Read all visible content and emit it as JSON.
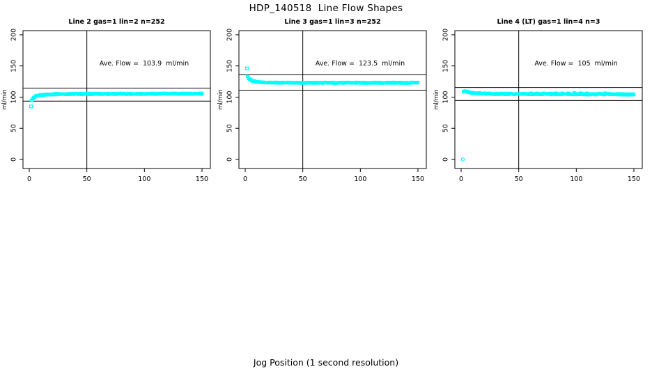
{
  "chart_data": {
    "type": "scatter",
    "title": "HDP_140518  Line Flow Shapes",
    "xlabel": "Jog Position (1 second resolution)",
    "ylabel": "ml/min",
    "xticks": [
      0,
      50,
      100,
      150
    ],
    "yticks": [
      0,
      50,
      100,
      150,
      200
    ],
    "xlim": [
      -5.5,
      157
    ],
    "ylim": [
      -14,
      208
    ],
    "grid": false,
    "marker": "open-square",
    "marker_color": "#00FFFF",
    "line_color": "#000000",
    "vline_x": 50,
    "panels": [
      {
        "title": "Line 2 gas=1 lin=2 n=252",
        "ave_label": "Ave. Flow =  103.9  ml/min",
        "ave_flow": 103.9,
        "n": 252,
        "ref_lines": [
          93.5,
          114.3
        ],
        "outlier": {
          "x": 1.5,
          "y": 85,
          "marker": "square"
        },
        "band": [
          [
            2,
            94.5
          ],
          [
            3,
            97
          ],
          [
            4,
            99
          ],
          [
            5,
            100.3
          ],
          [
            6,
            101.2
          ],
          [
            8,
            102.4
          ],
          [
            11,
            103.4
          ],
          [
            15,
            104.2
          ],
          [
            22,
            104.8
          ],
          [
            35,
            105
          ],
          [
            70,
            105.2
          ],
          [
            120,
            105.4
          ],
          [
            150,
            105.5
          ]
        ],
        "band_jitter": 0.9
      },
      {
        "title": "Line 3 gas=1 lin=3 n=252",
        "ave_label": "Ave. Flow =  123.5  ml/min",
        "ave_flow": 123.5,
        "n": 252,
        "ref_lines": [
          111.2,
          135.9
        ],
        "outlier": {
          "x": 1.5,
          "y": 146,
          "marker": "square"
        },
        "band": [
          [
            2,
            133
          ],
          [
            3,
            130.5
          ],
          [
            4,
            128.8
          ],
          [
            5,
            127.5
          ],
          [
            7,
            125.8
          ],
          [
            9,
            124.8
          ],
          [
            12,
            124
          ],
          [
            18,
            123.4
          ],
          [
            30,
            123.1
          ],
          [
            70,
            123
          ],
          [
            150,
            123
          ]
        ],
        "band_jitter": 0.8
      },
      {
        "title": "Line 4 (LT) gas=1 lin=4 n=3",
        "ave_label": "Ave. Flow =  105  ml/min",
        "ave_flow": 105,
        "n": 3,
        "ref_lines": [
          94.5,
          115.5
        ],
        "outlier": {
          "x": 1.5,
          "y": 0,
          "marker": "circle"
        },
        "band": [
          [
            2,
            109.5
          ],
          [
            3,
            109.8
          ],
          [
            5,
            108.5
          ],
          [
            8,
            107.2
          ],
          [
            13,
            106.2
          ],
          [
            22,
            105.5
          ],
          [
            45,
            105
          ],
          [
            100,
            104.8
          ],
          [
            150,
            104.3
          ]
        ],
        "band_jitter": 1.0,
        "spikes": true
      }
    ]
  }
}
